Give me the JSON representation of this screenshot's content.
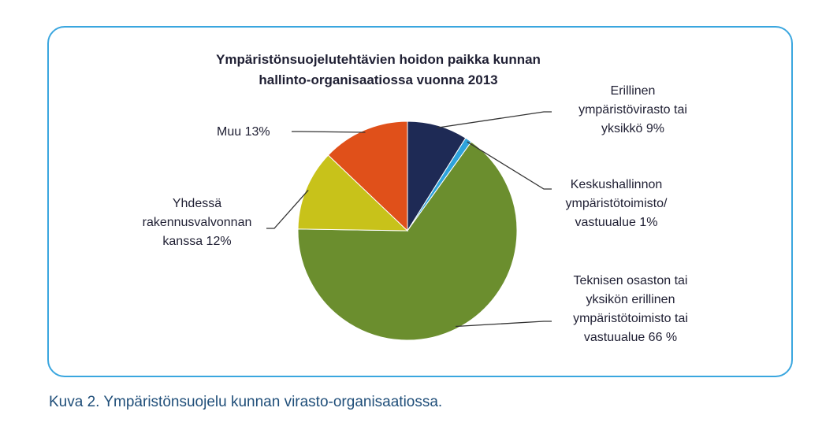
{
  "chart_data": {
    "type": "pie",
    "title": "Ympäristönsuojelutehtävien hoidon paikka kunnan hallinto-organisaatiossa vuonna 2013",
    "title_lines": [
      "Ympäristönsuojelutehtävien hoidon paikka kunnan",
      "hallinto-organisaatiossa vuonna 2013"
    ],
    "slices": [
      {
        "label": "Erillinen ympäristövirasto tai yksikkö 9%",
        "label_lines": [
          "Erillinen",
          "ympäristövirasto tai",
          "yksikkö  9%"
        ],
        "value": 9,
        "color": "#1e2a55"
      },
      {
        "label": "Keskushallinnon ympäristötoimisto/ vastuualue 1%",
        "label_lines": [
          "Keskushallinnon",
          "ympäristötoimisto/",
          "vastuualue 1%"
        ],
        "value": 1,
        "color": "#2ea3dc"
      },
      {
        "label": "Teknisen osaston tai yksikön erillinen ympäristötoimisto tai vastuualue 66 %",
        "label_lines": [
          "Teknisen osaston tai",
          "yksikön erillinen",
          "ympäristötoimisto tai",
          "vastuualue 66 %"
        ],
        "value": 66,
        "color": "#6b8e2e"
      },
      {
        "label": "Yhdessä rakennusvalvonnan kanssa 12%",
        "label_lines": [
          "Yhdessä",
          "rakennusvalvonnan",
          "kanssa 12%"
        ],
        "value": 12,
        "color": "#c8c21a"
      },
      {
        "label": "Muu 13%",
        "label_lines": [
          "Muu 13%"
        ],
        "value": 13,
        "color": "#e0501a"
      }
    ],
    "start_angle_deg": 0,
    "direction": "clockwise",
    "legend": "none",
    "label_style": "callouts"
  },
  "caption": "Kuva 2. Ympäristönsuojelu kunnan virasto-organisaatiossa.",
  "colors": {
    "frame_border": "#3aa6df",
    "caption_text": "#1f4e79",
    "label_text": "#1f1f33",
    "leader_line": "#333333"
  }
}
